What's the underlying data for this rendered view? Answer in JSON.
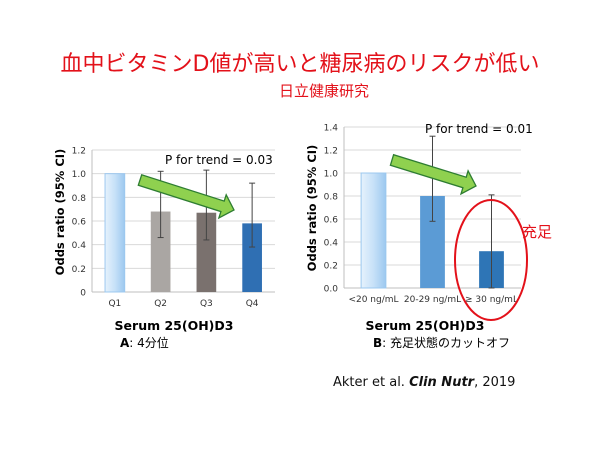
{
  "header": {
    "title": "血中ビタミンD値が高いと糖尿病のリスクが低い",
    "subtitle": "日立健康研究"
  },
  "panels": {
    "a": {
      "letter": "A",
      "text": ": 4分位"
    },
    "b": {
      "letter": "B",
      "text": ": 充足状態のカットオフ"
    }
  },
  "annotation": {
    "sufficient_label": "充足"
  },
  "citation": {
    "authors": "Akter et al.",
    "journal": "Clin Nutr",
    "year": ", 2019"
  },
  "colors": {
    "title": "#e3111a",
    "arrow_fill": "#8fd14f",
    "arrow_stroke": "#2e7d32",
    "circle": "#e3111a"
  },
  "chart_data": [
    {
      "type": "bar",
      "categories": [
        "Q1",
        "Q2",
        "Q3",
        "Q4"
      ],
      "values": [
        1.0,
        0.68,
        0.67,
        0.58
      ],
      "error_low": [
        1.0,
        0.46,
        0.44,
        0.38
      ],
      "error_high": [
        1.0,
        1.02,
        1.03,
        0.92
      ],
      "colors": [
        "#bfdcf7",
        "#aaa6a3",
        "#7a716e",
        "#2f6fb3"
      ],
      "ylabel": "Odds ratio (95% CI)",
      "xlabel": "Serum 25(OH)D3",
      "ylim": [
        0,
        1.2
      ],
      "yticks": [
        "0",
        "0.2",
        "0.4",
        "0.6",
        "0.8",
        "1.0",
        "1.2"
      ],
      "annotation": "P for trend = 0.03",
      "grid": true
    },
    {
      "type": "bar",
      "categories": [
        "<20 ng/mL",
        "20-29 ng/mL",
        "≥ 30 ng/mL"
      ],
      "values": [
        1.0,
        0.8,
        0.32
      ],
      "error_low": [
        1.0,
        0.58,
        0.0
      ],
      "error_high": [
        1.0,
        1.32,
        0.81
      ],
      "colors": [
        "#bfdcf7",
        "#5b9bd5",
        "#2e75b6"
      ],
      "ylabel": "Odds ratio (95% CI)",
      "xlabel": "Serum 25(OH)D3",
      "ylim": [
        0,
        1.4
      ],
      "yticks": [
        "0.0",
        "0.2",
        "0.4",
        "0.6",
        "0.8",
        "1.0",
        "1.2",
        "1.4"
      ],
      "annotation": "P for trend = 0.01",
      "grid": true
    }
  ]
}
